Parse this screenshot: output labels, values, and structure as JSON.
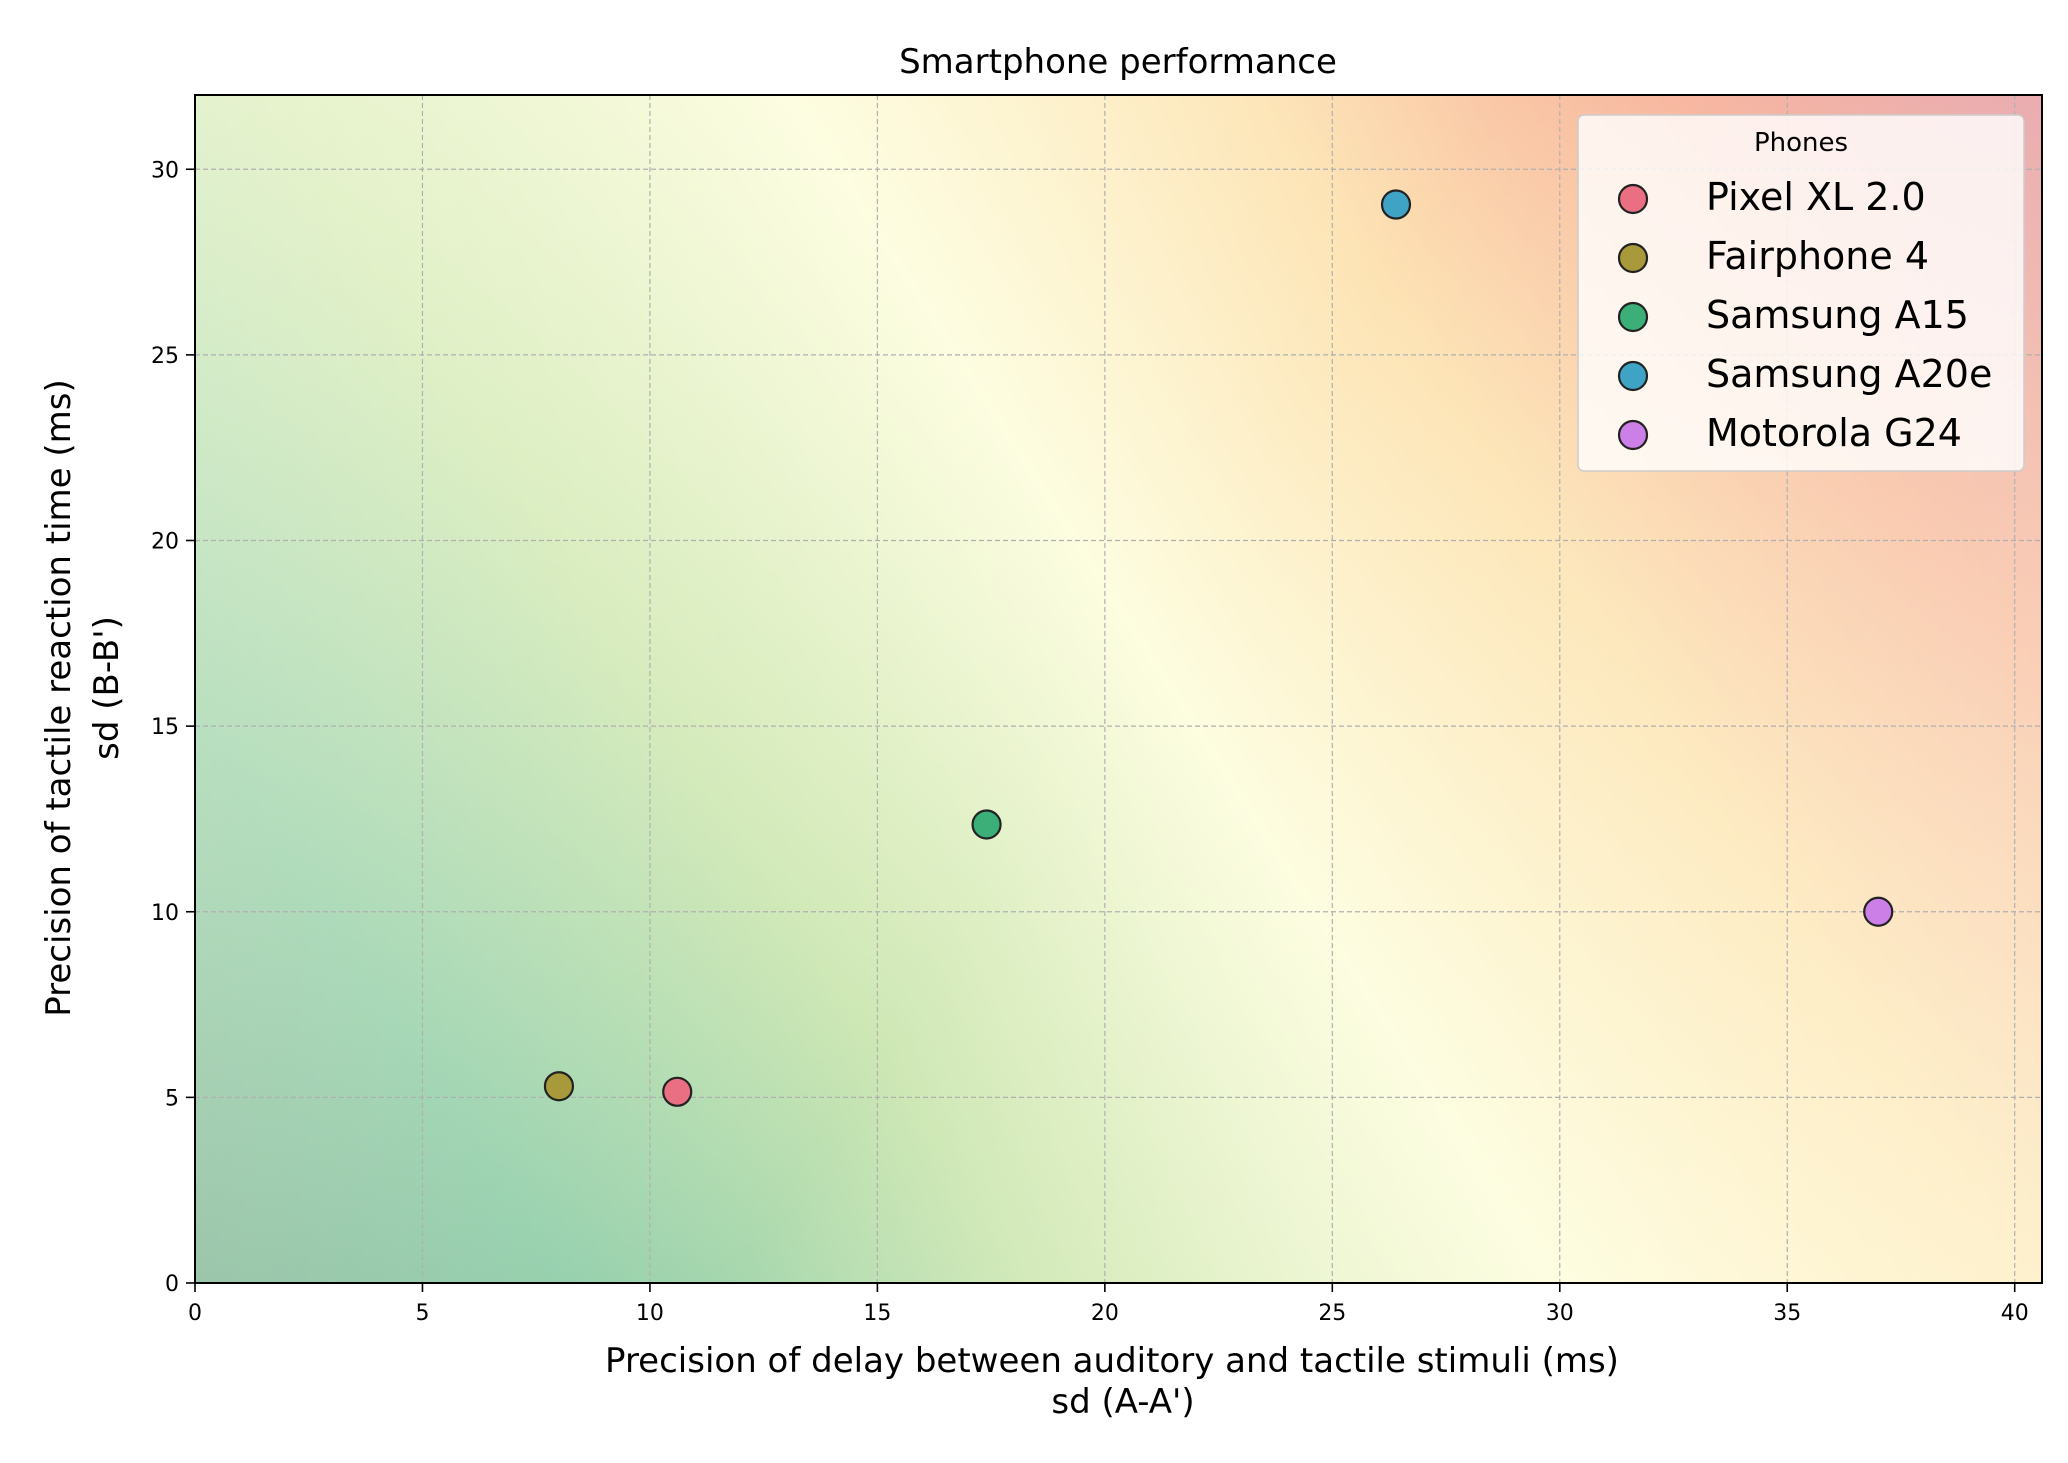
{
  "chart_data": {
    "type": "scatter",
    "title": "Smartphone performance",
    "xlabel": [
      "Precision of delay between auditory and tactile stimuli (ms)",
      "sd (A-A')"
    ],
    "ylabel": [
      "Precision of tactile reaction time (ms)",
      "sd (B-B')"
    ],
    "xlim": [
      0,
      40.6
    ],
    "ylim": [
      0,
      32
    ],
    "xticks": [
      0,
      5,
      10,
      15,
      20,
      25,
      30,
      35,
      40
    ],
    "yticks": [
      0,
      5,
      10,
      15,
      20,
      25,
      30
    ],
    "grid": true,
    "legend": {
      "title": "Phones",
      "position": "top-right"
    },
    "background": "diagonal gradient: green at origin, yellow midband, red top-right",
    "series": [
      {
        "name": "Pixel XL 2.0",
        "color": "#ea6f82",
        "x": [
          10.6
        ],
        "y": [
          5.15
        ]
      },
      {
        "name": "Fairphone 4",
        "color": "#a89a3a",
        "x": [
          8.0
        ],
        "y": [
          5.3
        ]
      },
      {
        "name": "Samsung A15",
        "color": "#3cae78",
        "x": [
          17.4
        ],
        "y": [
          12.35
        ]
      },
      {
        "name": "Samsung A20e",
        "color": "#3fa3c6",
        "x": [
          26.4
        ],
        "y": [
          29.05
        ]
      },
      {
        "name": "Motorola G24",
        "color": "#cc7fe6",
        "x": [
          37.0
        ],
        "y": [
          10.0
        ]
      }
    ]
  }
}
